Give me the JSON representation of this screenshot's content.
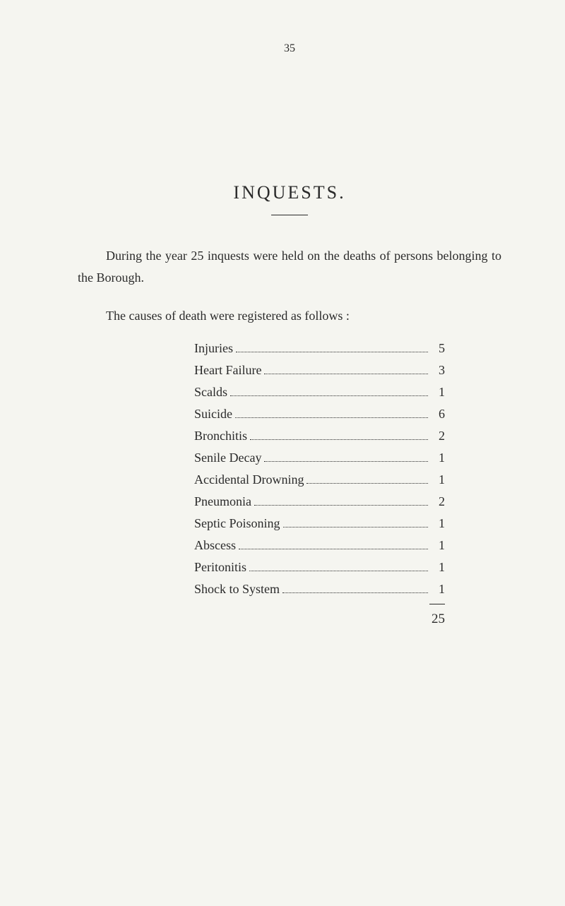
{
  "page_number": "35",
  "title": "INQUESTS.",
  "intro_text": "During the year 25 inquests were held on the deaths of persons belonging to the Borough.",
  "causes_intro": "The causes of death were registered as follows :",
  "causes": [
    {
      "label": "Injuries",
      "value": "5"
    },
    {
      "label": "Heart Failure",
      "value": "3"
    },
    {
      "label": "Scalds",
      "value": "1"
    },
    {
      "label": "Suicide",
      "value": "6"
    },
    {
      "label": "Bronchitis",
      "value": "2"
    },
    {
      "label": "Senile Decay",
      "value": "1"
    },
    {
      "label": "Accidental Drowning",
      "value": "1"
    },
    {
      "label": "Pneumonia",
      "value": "2"
    },
    {
      "label": "Septic Poisoning",
      "value": "1"
    },
    {
      "label": "Abscess",
      "value": "1"
    },
    {
      "label": "Peritonitis",
      "value": "1"
    },
    {
      "label": "Shock to System",
      "value": "1"
    }
  ],
  "total": "25",
  "colors": {
    "background": "#f5f5f0",
    "text": "#2a2a2a"
  },
  "typography": {
    "body_fontsize": 18,
    "title_fontsize": 26,
    "page_number_fontsize": 16,
    "font_family": "Times New Roman"
  }
}
